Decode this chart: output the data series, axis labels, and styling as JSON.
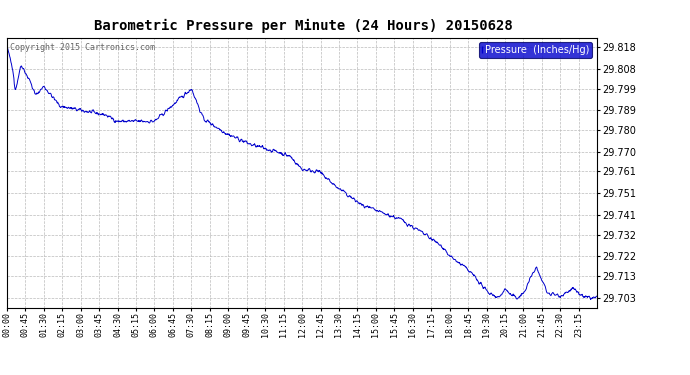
{
  "title": "Barometric Pressure per Minute (24 Hours) 20150628",
  "copyright": "Copyright 2015 Cartronics.com",
  "legend_label": "Pressure  (Inches/Hg)",
  "line_color": "#0000cc",
  "background_color": "#ffffff",
  "grid_color": "#bbbbbb",
  "yticks": [
    29.703,
    29.713,
    29.722,
    29.732,
    29.741,
    29.751,
    29.761,
    29.77,
    29.78,
    29.789,
    29.799,
    29.808,
    29.818
  ],
  "ylim": [
    29.6985,
    29.8225
  ],
  "xtick_labels": [
    "00:00",
    "00:45",
    "01:30",
    "02:15",
    "03:00",
    "03:45",
    "04:30",
    "05:15",
    "06:00",
    "06:45",
    "07:30",
    "08:15",
    "09:00",
    "09:45",
    "10:30",
    "11:15",
    "12:00",
    "12:45",
    "13:30",
    "14:15",
    "15:00",
    "15:45",
    "16:30",
    "17:15",
    "18:00",
    "18:45",
    "19:30",
    "20:15",
    "21:00",
    "21:45",
    "22:30",
    "23:15"
  ],
  "num_minutes": 1440,
  "title_fontsize": 10,
  "ytick_fontsize": 7,
  "xtick_fontsize": 6
}
